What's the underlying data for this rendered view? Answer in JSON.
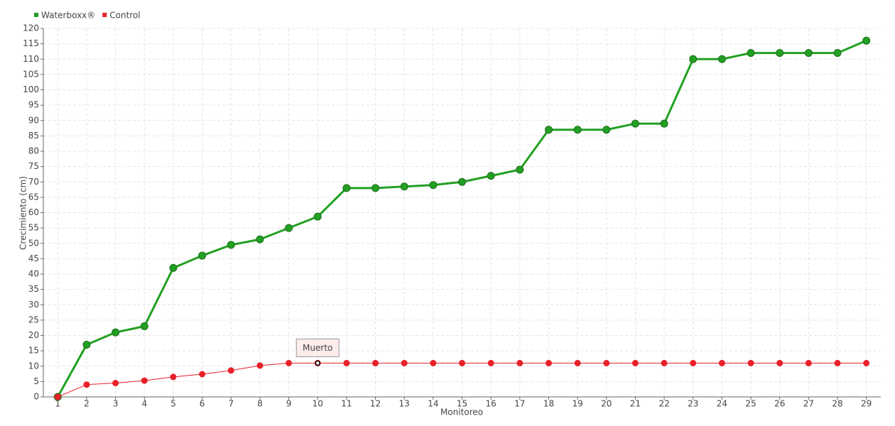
{
  "chart_data": {
    "type": "line",
    "y_label": "Crecimiento (cm)",
    "x_label": "Monitoreo",
    "categories": [
      1,
      2,
      3,
      4,
      5,
      6,
      7,
      8,
      9,
      10,
      11,
      12,
      13,
      14,
      15,
      16,
      17,
      18,
      19,
      20,
      21,
      22,
      23,
      24,
      25,
      26,
      27,
      28,
      29
    ],
    "series": [
      {
        "name": "Waterboxx®",
        "color": "#22a022",
        "values": [
          0,
          17,
          21,
          23,
          42,
          46,
          49.5,
          51.3,
          55,
          58.7,
          68,
          68,
          68.5,
          69,
          70,
          72,
          74,
          87,
          87,
          87,
          89,
          89,
          110,
          110,
          112,
          112,
          112,
          112,
          116
        ]
      },
      {
        "name": "Control",
        "color": "#e8202a",
        "values": [
          0,
          4,
          4.5,
          5.3,
          6.5,
          7.4,
          8.6,
          10.2,
          11,
          11,
          11,
          11,
          11,
          11,
          11,
          11,
          11,
          11,
          11,
          11,
          11,
          11,
          11,
          11,
          11,
          11,
          11,
          11,
          11
        ]
      }
    ],
    "annotations": [
      {
        "text": "Muerto",
        "series": "Control",
        "category": 10
      }
    ],
    "ylim": [
      0,
      120
    ],
    "yticks": [
      0,
      5,
      10,
      15,
      20,
      25,
      30,
      35,
      40,
      45,
      50,
      55,
      60,
      65,
      70,
      75,
      80,
      85,
      90,
      95,
      100,
      105,
      110,
      115,
      120
    ],
    "grid": true,
    "legend": "top-left"
  }
}
